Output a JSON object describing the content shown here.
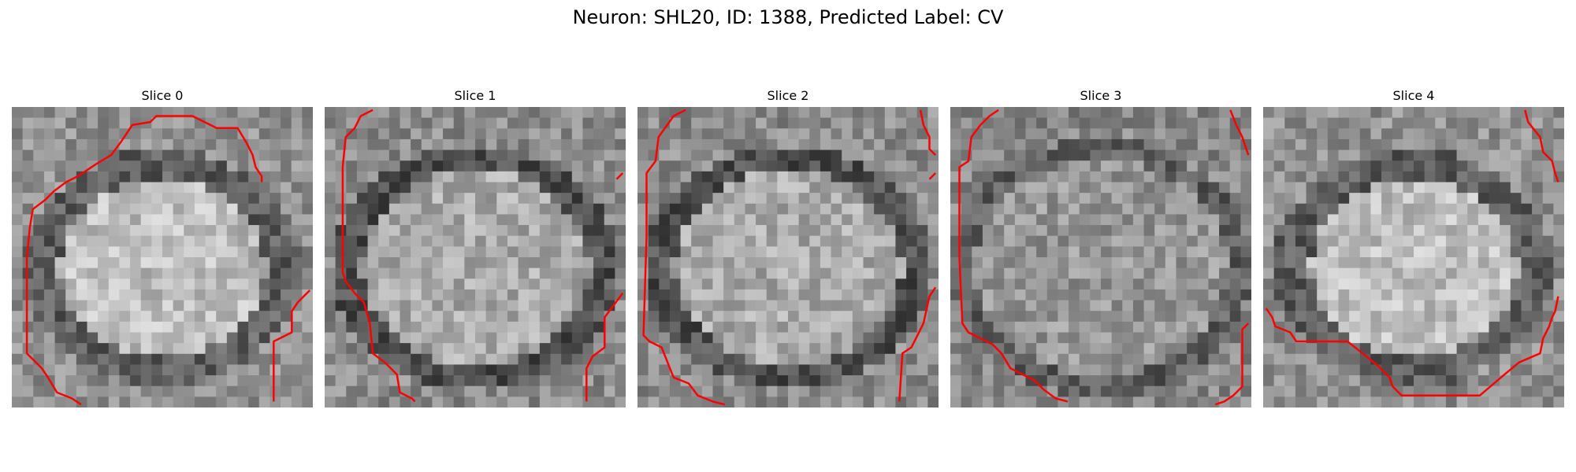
{
  "figure": {
    "title": "Neuron: SHL20, ID: 1388, Predicted Label: CV",
    "overlay_color": "#ff0000",
    "colormap": "gray",
    "panels": [
      {
        "label": "Slice 0",
        "texture_seed": 11,
        "nucleus": "bright-blob",
        "contours": [
          [
            [
              0.83,
              0.25
            ],
            [
              0.83,
              0.23
            ],
            [
              0.81,
              0.2
            ],
            [
              0.8,
              0.16
            ],
            [
              0.78,
              0.12
            ],
            [
              0.75,
              0.07
            ],
            [
              0.68,
              0.07
            ],
            [
              0.66,
              0.06
            ],
            [
              0.6,
              0.03
            ],
            [
              0.48,
              0.03
            ],
            [
              0.46,
              0.05
            ],
            [
              0.4,
              0.06
            ],
            [
              0.38,
              0.09
            ],
            [
              0.36,
              0.12
            ],
            [
              0.33,
              0.16
            ],
            [
              0.28,
              0.19
            ],
            [
              0.22,
              0.23
            ],
            [
              0.18,
              0.25
            ],
            [
              0.14,
              0.28
            ],
            [
              0.11,
              0.31
            ],
            [
              0.07,
              0.34
            ],
            [
              0.06,
              0.4
            ],
            [
              0.05,
              0.5
            ],
            [
              0.05,
              0.82
            ],
            [
              0.1,
              0.87
            ],
            [
              0.12,
              0.9
            ],
            [
              0.15,
              0.95
            ],
            [
              0.2,
              0.97
            ],
            [
              0.23,
              0.99
            ]
          ],
          [
            [
              0.99,
              0.61
            ],
            [
              0.95,
              0.65
            ],
            [
              0.93,
              0.68
            ],
            [
              0.93,
              0.75
            ],
            [
              0.87,
              0.78
            ],
            [
              0.87,
              0.98
            ]
          ]
        ]
      },
      {
        "label": "Slice 1",
        "texture_seed": 23,
        "nucleus": "dark-ring",
        "contours": [
          [
            [
              0.16,
              0.01
            ],
            [
              0.12,
              0.03
            ],
            [
              0.1,
              0.07
            ],
            [
              0.07,
              0.1
            ],
            [
              0.06,
              0.2
            ],
            [
              0.06,
              0.55
            ],
            [
              0.07,
              0.58
            ],
            [
              0.1,
              0.62
            ],
            [
              0.13,
              0.65
            ],
            [
              0.15,
              0.72
            ],
            [
              0.16,
              0.82
            ],
            [
              0.2,
              0.85
            ],
            [
              0.24,
              0.89
            ],
            [
              0.25,
              0.95
            ],
            [
              0.29,
              0.97
            ],
            [
              0.3,
              0.98
            ]
          ],
          [
            [
              0.99,
              0.22
            ],
            [
              0.97,
              0.24
            ]
          ],
          [
            [
              0.99,
              0.62
            ],
            [
              0.96,
              0.66
            ],
            [
              0.93,
              0.7
            ],
            [
              0.93,
              0.8
            ],
            [
              0.89,
              0.83
            ],
            [
              0.87,
              0.87
            ],
            [
              0.87,
              0.98
            ]
          ]
        ]
      },
      {
        "label": "Slice 2",
        "texture_seed": 37,
        "nucleus": "dark-ring",
        "contours": [
          [
            [
              0.16,
              0.01
            ],
            [
              0.12,
              0.03
            ],
            [
              0.07,
              0.1
            ],
            [
              0.06,
              0.18
            ],
            [
              0.03,
              0.22
            ],
            [
              0.03,
              0.43
            ],
            [
              0.02,
              0.76
            ],
            [
              0.04,
              0.78
            ],
            [
              0.08,
              0.8
            ],
            [
              0.1,
              0.85
            ],
            [
              0.12,
              0.9
            ],
            [
              0.17,
              0.92
            ],
            [
              0.2,
              0.96
            ],
            [
              0.25,
              0.98
            ],
            [
              0.29,
              0.99
            ]
          ],
          [
            [
              0.94,
              0.01
            ],
            [
              0.95,
              0.06
            ],
            [
              0.97,
              0.1
            ],
            [
              0.97,
              0.14
            ],
            [
              0.99,
              0.16
            ]
          ],
          [
            [
              0.99,
              0.22
            ],
            [
              0.97,
              0.24
            ]
          ],
          [
            [
              0.99,
              0.6
            ],
            [
              0.97,
              0.63
            ],
            [
              0.95,
              0.72
            ],
            [
              0.93,
              0.76
            ],
            [
              0.91,
              0.8
            ],
            [
              0.88,
              0.82
            ],
            [
              0.87,
              0.98
            ]
          ]
        ]
      },
      {
        "label": "Slice 3",
        "texture_seed": 53,
        "nucleus": "faint",
        "contours": [
          [
            [
              0.16,
              0.01
            ],
            [
              0.13,
              0.03
            ],
            [
              0.1,
              0.06
            ],
            [
              0.07,
              0.1
            ],
            [
              0.06,
              0.18
            ],
            [
              0.03,
              0.2
            ],
            [
              0.03,
              0.5
            ],
            [
              0.04,
              0.72
            ],
            [
              0.06,
              0.75
            ],
            [
              0.1,
              0.77
            ],
            [
              0.14,
              0.79
            ],
            [
              0.17,
              0.82
            ],
            [
              0.2,
              0.87
            ],
            [
              0.24,
              0.89
            ],
            [
              0.28,
              0.91
            ],
            [
              0.31,
              0.94
            ],
            [
              0.35,
              0.97
            ],
            [
              0.39,
              0.98
            ]
          ],
          [
            [
              0.93,
              0.01
            ],
            [
              0.95,
              0.06
            ],
            [
              0.97,
              0.1
            ],
            [
              0.99,
              0.16
            ]
          ],
          [
            [
              0.99,
              0.72
            ],
            [
              0.97,
              0.74
            ],
            [
              0.97,
              0.93
            ],
            [
              0.94,
              0.96
            ],
            [
              0.91,
              0.98
            ],
            [
              0.88,
              0.99
            ]
          ]
        ]
      },
      {
        "label": "Slice 4",
        "texture_seed": 71,
        "nucleus": "bright-blob",
        "contours": [
          [
            [
              0.87,
              0.01
            ],
            [
              0.88,
              0.05
            ],
            [
              0.92,
              0.1
            ],
            [
              0.93,
              0.15
            ],
            [
              0.96,
              0.18
            ],
            [
              0.97,
              0.22
            ],
            [
              0.98,
              0.25
            ]
          ],
          [
            [
              0.01,
              0.67
            ],
            [
              0.03,
              0.7
            ],
            [
              0.04,
              0.73
            ],
            [
              0.09,
              0.75
            ],
            [
              0.11,
              0.78
            ],
            [
              0.28,
              0.78
            ],
            [
              0.33,
              0.82
            ],
            [
              0.38,
              0.86
            ],
            [
              0.42,
              0.9
            ],
            [
              0.43,
              0.93
            ],
            [
              0.46,
              0.96
            ],
            [
              0.72,
              0.96
            ],
            [
              0.79,
              0.9
            ],
            [
              0.85,
              0.85
            ],
            [
              0.92,
              0.82
            ],
            [
              0.93,
              0.77
            ],
            [
              0.95,
              0.73
            ],
            [
              0.96,
              0.7
            ],
            [
              0.97,
              0.68
            ],
            [
              0.98,
              0.63
            ]
          ]
        ]
      }
    ]
  }
}
